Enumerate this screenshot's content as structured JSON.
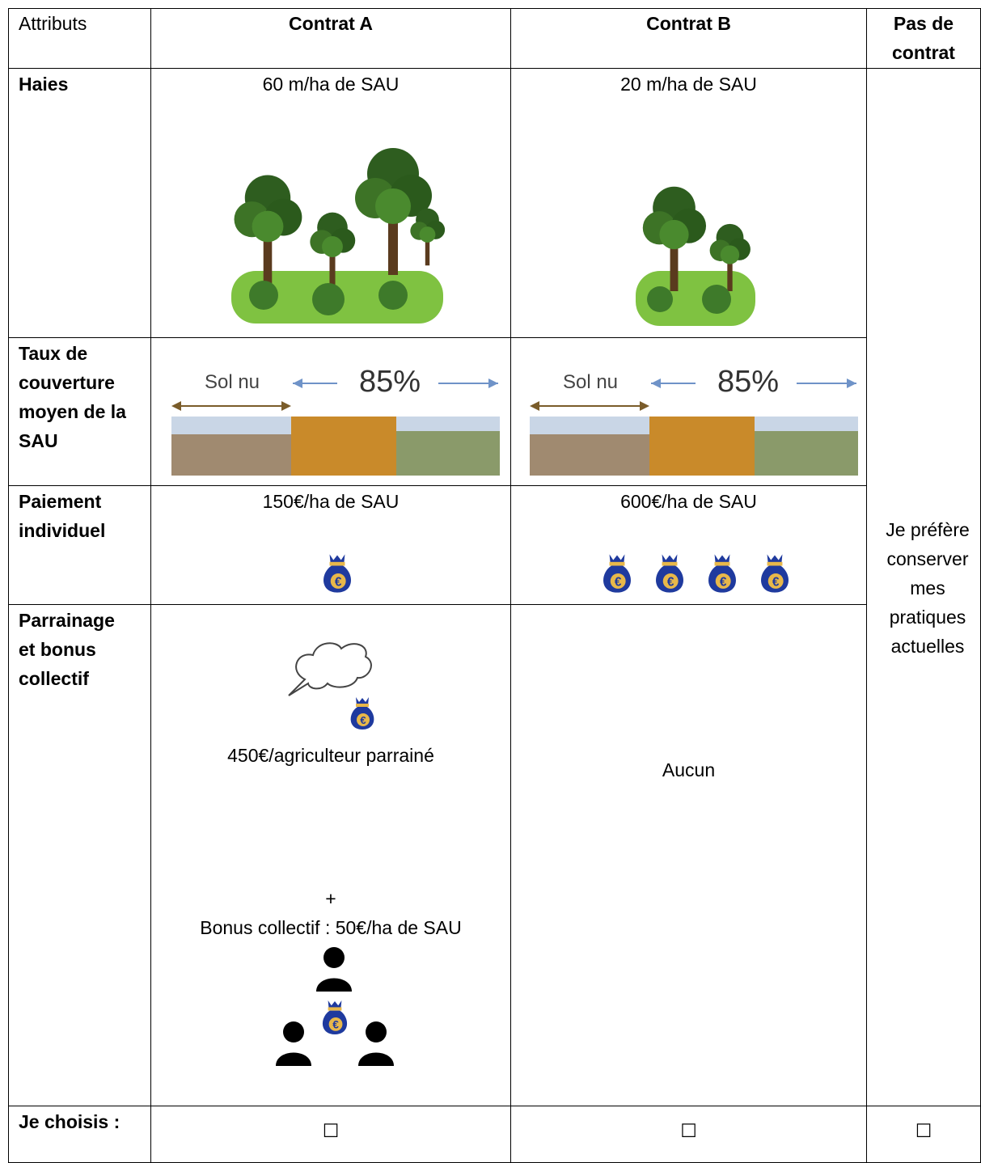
{
  "table": {
    "header": [
      "Attributs",
      "Contrat A",
      "Contrat B",
      "Pas de contrat"
    ],
    "haies": {
      "label": "Haies",
      "contrat_a": "60 m/ha de SAU",
      "contrat_b": "20 m/ha de SAU"
    },
    "couverture": {
      "label": "Taux de couverture moyen de la SAU",
      "bare_soil": "Sol nu",
      "rate": "85%"
    },
    "paiement": {
      "label": "Paiement individuel",
      "contrat_a": "150€/ha de SAU",
      "contrat_b": "600€/ha de SAU"
    },
    "parrainage": {
      "label": "Parrainage et bonus collectif",
      "contrat_a_sponsor": "450€/agriculteur parrainé",
      "plus": "+",
      "contrat_a_bonus": "Bonus collectif : 50€/ha de SAU",
      "contrat_b": "Aucun"
    },
    "no_contract": "Je préfère conserver mes pratiques actuelles",
    "choice": {
      "label": "Je choisis :",
      "box": "☐"
    }
  }
}
